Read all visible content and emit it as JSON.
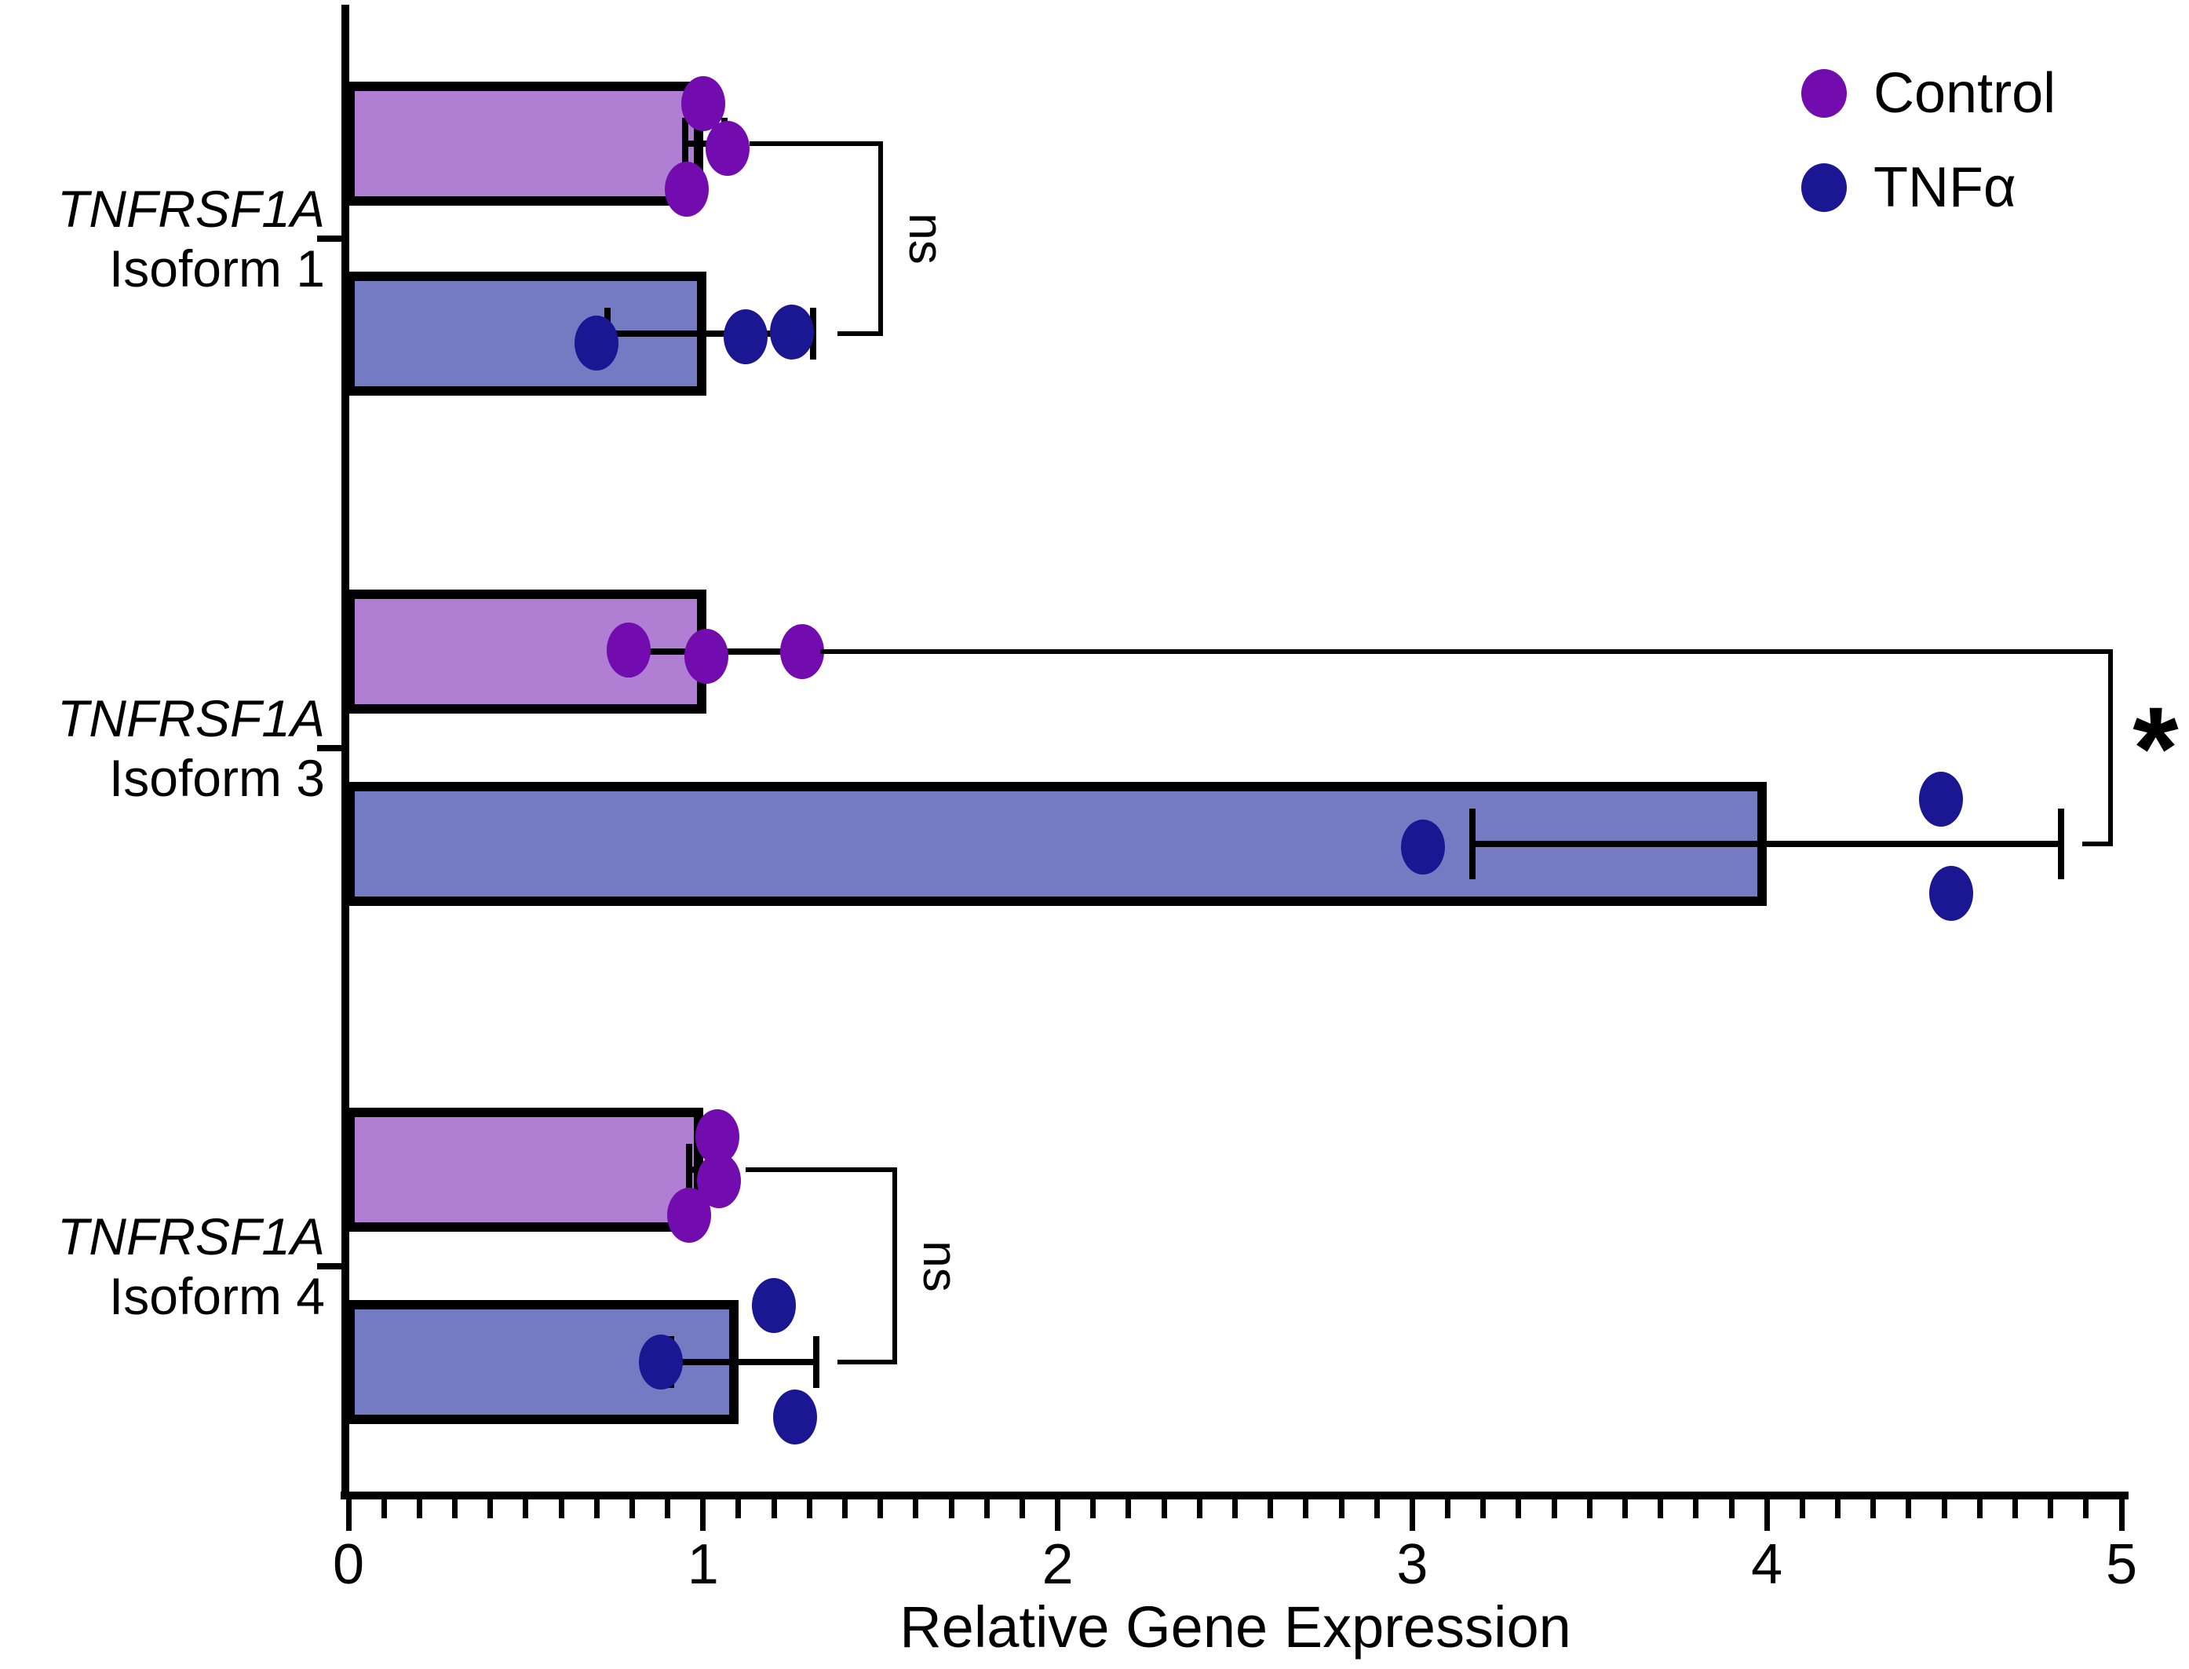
{
  "chart_data": {
    "type": "bar",
    "orientation": "horizontal",
    "title": "",
    "xlabel": "Relative Gene Expression",
    "xlim": [
      0,
      5
    ],
    "x_major_ticks": [
      0,
      1,
      2,
      3,
      4,
      5
    ],
    "x_minor_step": 0.1,
    "grid": false,
    "legend_position": "top-right",
    "legend": [
      {
        "label": "Control",
        "color": "#720cae"
      },
      {
        "label": "TNFα",
        "color": "#1b1792"
      }
    ],
    "series_meta": [
      {
        "name": "Control",
        "bar_fill": "#b07ed2",
        "point_color": "#720cae"
      },
      {
        "name": "TNFα",
        "bar_fill": "#747bc2",
        "point_color": "#1b1792"
      }
    ],
    "groups": [
      {
        "label_line1": "TNFRSF1A",
        "label_line2": "Isoform 1",
        "bars": [
          {
            "series": "Control",
            "mean": 1.0,
            "error_low": 0.95,
            "error_high": 1.06,
            "points": [
              {
                "v": 1.0,
                "dy": -51
              },
              {
                "v": 1.07,
                "dy": 6
              },
              {
                "v": 0.955,
                "dy": 58
              }
            ]
          },
          {
            "series": "TNFα",
            "mean": 1.01,
            "error_low": 0.73,
            "error_high": 1.31,
            "points": [
              {
                "v": 0.7,
                "dy": 12
              },
              {
                "v": 1.12,
                "dy": 4
              },
              {
                "v": 1.25,
                "dy": -2
              }
            ]
          }
        ],
        "significance": {
          "label": "ns",
          "x": 1.5,
          "top_from": 1.13,
          "bottom_from": 1.38,
          "rotated": true
        }
      },
      {
        "label_line1": "TNFRSF1A",
        "label_line2": "Isoform 3",
        "bars": [
          {
            "series": "Control",
            "mean": 1.01,
            "error_low": 0.79,
            "error_high": 1.27,
            "points": [
              {
                "v": 0.79,
                "dy": -2
              },
              {
                "v": 1.01,
                "dy": 6
              },
              {
                "v": 1.28,
                "dy": 0
              }
            ]
          },
          {
            "series": "TNFα",
            "mean": 4.0,
            "error_low": 3.17,
            "error_high": 4.83,
            "cap_half": 45,
            "points": [
              {
                "v": 3.03,
                "dy": 4
              },
              {
                "v": 4.49,
                "dy": -57
              },
              {
                "v": 4.52,
                "dy": 63
              }
            ]
          }
        ],
        "significance": {
          "label": "*",
          "x": 4.97,
          "top_from": 1.33,
          "bottom_from": 4.89,
          "rotated": false
        }
      },
      {
        "label_line1": "TNFRSF1A",
        "label_line2": "Isoform 4",
        "bars": [
          {
            "series": "Control",
            "mean": 1.0,
            "error_low": 0.96,
            "error_high": 1.05,
            "points": [
              {
                "v": 1.04,
                "dy": -42
              },
              {
                "v": 1.045,
                "dy": 14
              },
              {
                "v": 0.96,
                "dy": 58
              }
            ]
          },
          {
            "series": "TNFα",
            "mean": 1.1,
            "error_low": 0.91,
            "error_high": 1.32,
            "points": [
              {
                "v": 0.88,
                "dy": 0
              },
              {
                "v": 1.2,
                "dy": -72
              },
              {
                "v": 1.26,
                "dy": 70
              }
            ]
          }
        ],
        "significance": {
          "label": "ns",
          "x": 1.54,
          "top_from": 1.12,
          "bottom_from": 1.38,
          "rotated": true
        }
      }
    ]
  }
}
